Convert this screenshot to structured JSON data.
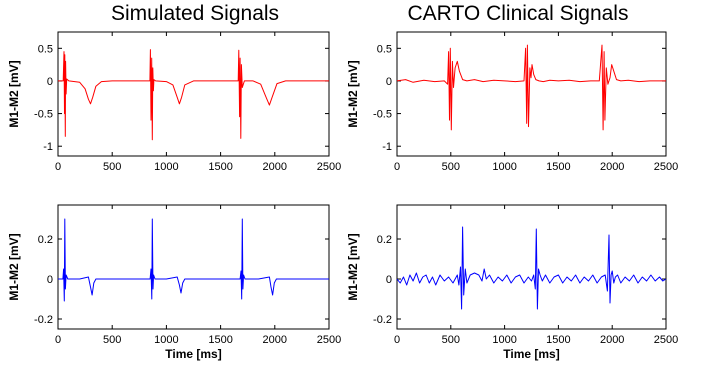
{
  "column_titles": [
    "Simulated Signals",
    "CARTO Clinical Signals"
  ],
  "colors": {
    "top_trace": "#ff0000",
    "bottom_trace": "#0000ff",
    "axes": "#000000"
  },
  "chart_data": [
    {
      "type": "line",
      "panel": "top-left",
      "ylabel": "M1-M2 [mV]",
      "xlabel": "",
      "xlim": [
        0,
        2500
      ],
      "ylim": [
        -1.15,
        0.75
      ],
      "xticks": [
        0,
        500,
        1000,
        1500,
        2000,
        2500
      ],
      "yticks": [
        -1,
        -0.5,
        0,
        0.5
      ],
      "ytick_labels": [
        "-1",
        "-0.5",
        "0",
        "0.5"
      ],
      "color": "#ff0000",
      "series": [
        {
          "x": [
            0,
            48,
            55,
            60,
            63,
            67,
            70,
            75,
            80,
            100,
            200,
            250,
            280,
            300,
            320,
            350,
            400,
            500,
            700,
            848,
            852,
            858,
            864,
            870,
            875,
            880,
            885,
            900,
            1000,
            1060,
            1100,
            1120,
            1140,
            1170,
            1250,
            1400,
            1662,
            1668,
            1675,
            1680,
            1686,
            1692,
            1700,
            1720,
            1800,
            1870,
            1920,
            1950,
            1975,
            2020,
            2100,
            2300,
            2500
          ],
          "y": [
            0,
            0,
            0.45,
            -0.5,
            0.4,
            -0.85,
            0.3,
            -0.2,
            0.03,
            0,
            -0.02,
            -0.12,
            -0.28,
            -0.35,
            -0.25,
            -0.08,
            -0.01,
            0,
            0,
            0,
            0.48,
            -0.6,
            0.35,
            -0.9,
            0.2,
            -0.15,
            0.02,
            0,
            -0.01,
            -0.06,
            -0.25,
            -0.35,
            -0.25,
            -0.06,
            0,
            0,
            0,
            0.47,
            -0.55,
            0.35,
            -0.88,
            0.25,
            -0.1,
            0,
            0,
            -0.05,
            -0.25,
            -0.37,
            -0.25,
            -0.04,
            0,
            0,
            0
          ]
        }
      ]
    },
    {
      "type": "line",
      "panel": "top-right",
      "ylabel": "M1-M2 [mV]",
      "xlabel": "",
      "xlim": [
        0,
        2500
      ],
      "ylim": [
        -1.15,
        0.75
      ],
      "xticks": [
        0,
        500,
        1000,
        1500,
        2000,
        2500
      ],
      "yticks": [
        -1,
        -0.5,
        0,
        0.5
      ],
      "ytick_labels": [
        "-1",
        "-0.5",
        "0",
        "0.5"
      ],
      "color": "#ff0000",
      "series": [
        {
          "x": [
            0,
            80,
            150,
            250,
            350,
            440,
            470,
            480,
            488,
            495,
            505,
            515,
            525,
            540,
            560,
            580,
            610,
            650,
            720,
            800,
            900,
            1000,
            1100,
            1180,
            1195,
            1205,
            1212,
            1222,
            1235,
            1245,
            1255,
            1270,
            1290,
            1320,
            1360,
            1420,
            1500,
            1600,
            1700,
            1800,
            1880,
            1905,
            1915,
            1925,
            1932,
            1945,
            1960,
            1980,
            1995,
            2015,
            2040,
            2080,
            2150,
            2250,
            2350,
            2500
          ],
          "y": [
            0,
            0.02,
            -0.02,
            0.01,
            -0.01,
            0,
            -0.05,
            0.45,
            -0.6,
            0.5,
            -0.75,
            0.3,
            -0.1,
            0.2,
            0.3,
            0.15,
            0.02,
            0,
            0.02,
            -0.01,
            0.01,
            0,
            -0.01,
            0,
            0.5,
            -0.65,
            0.55,
            -0.7,
            0.2,
            0.05,
            0.25,
            0.1,
            0.02,
            0,
            -0.01,
            0.01,
            0,
            0.01,
            -0.01,
            0,
            0,
            0.55,
            -0.75,
            0.45,
            -0.6,
            0.2,
            -0.05,
            0.05,
            0.25,
            0.15,
            0.02,
            0,
            0.01,
            -0.01,
            0,
            0
          ]
        }
      ]
    },
    {
      "type": "line",
      "panel": "bottom-left",
      "ylabel": "M1-M2 [mV]",
      "xlabel": "Time [ms]",
      "xlim": [
        0,
        2500
      ],
      "ylim": [
        -0.25,
        0.37
      ],
      "xticks": [
        0,
        500,
        1000,
        1500,
        2000,
        2500
      ],
      "yticks": [
        -0.2,
        0,
        0.2
      ],
      "ytick_labels": [
        "-0.2",
        "0",
        "0.2"
      ],
      "color": "#0000ff",
      "series": [
        {
          "x": [
            0,
            45,
            52,
            58,
            63,
            68,
            75,
            90,
            200,
            280,
            300,
            315,
            330,
            350,
            500,
            700,
            850,
            858,
            865,
            870,
            876,
            882,
            895,
            1000,
            1100,
            1120,
            1135,
            1150,
            1170,
            1300,
            1500,
            1680,
            1688,
            1695,
            1700,
            1706,
            1712,
            1725,
            1850,
            1950,
            1965,
            1980,
            1995,
            2015,
            2200,
            2500
          ],
          "y": [
            0,
            0,
            0.05,
            -0.11,
            0.3,
            -0.05,
            0.02,
            0,
            0,
            0.01,
            -0.04,
            -0.08,
            -0.02,
            0,
            0,
            0,
            0,
            0.05,
            -0.1,
            0.3,
            -0.05,
            0.02,
            0,
            0,
            0.01,
            -0.03,
            -0.07,
            -0.02,
            0,
            0,
            0,
            0,
            0.04,
            -0.1,
            0.3,
            -0.05,
            0.02,
            0,
            0,
            0.01,
            -0.04,
            -0.08,
            -0.02,
            0,
            0,
            0
          ]
        }
      ]
    },
    {
      "type": "line",
      "panel": "bottom-right",
      "ylabel": "M1-M2 [mV]",
      "xlabel": "Time [ms]",
      "xlim": [
        0,
        2500
      ],
      "ylim": [
        -0.25,
        0.37
      ],
      "xticks": [
        0,
        500,
        1000,
        1500,
        2000,
        2500
      ],
      "yticks": [
        -0.2,
        0,
        0.2
      ],
      "ytick_labels": [
        "-0.2",
        "0",
        "0.2"
      ],
      "color": "#0000ff",
      "series": [
        {
          "x": [
            0,
            30,
            60,
            90,
            120,
            150,
            180,
            210,
            240,
            270,
            300,
            330,
            360,
            400,
            440,
            480,
            520,
            560,
            575,
            590,
            600,
            610,
            620,
            635,
            650,
            680,
            720,
            760,
            790,
            810,
            830,
            860,
            900,
            940,
            980,
            1020,
            1060,
            1100,
            1140,
            1180,
            1220,
            1250,
            1270,
            1285,
            1295,
            1305,
            1315,
            1330,
            1350,
            1380,
            1420,
            1460,
            1500,
            1540,
            1580,
            1620,
            1660,
            1700,
            1740,
            1780,
            1820,
            1860,
            1900,
            1935,
            1955,
            1970,
            1980,
            1990,
            2000,
            2015,
            2030,
            2050,
            2080,
            2120,
            2160,
            2200,
            2240,
            2280,
            2320,
            2360,
            2400,
            2440,
            2470,
            2500
          ],
          "y": [
            0,
            -0.02,
            0.01,
            -0.03,
            0.02,
            -0.01,
            0.03,
            -0.02,
            0.01,
            0.02,
            -0.02,
            0.01,
            -0.03,
            0.02,
            -0.01,
            0.01,
            -0.02,
            0.02,
            -0.03,
            0.06,
            -0.15,
            0.26,
            -0.08,
            0.05,
            -0.02,
            0.02,
            0.03,
            0.02,
            -0.01,
            0.05,
            0.0,
            0.02,
            -0.02,
            0.01,
            -0.01,
            0.02,
            -0.02,
            0.01,
            0.02,
            -0.02,
            0.01,
            -0.01,
            0.02,
            -0.05,
            0.25,
            -0.15,
            0.05,
            0.02,
            -0.01,
            0.02,
            -0.02,
            0.01,
            0.02,
            -0.02,
            0.01,
            -0.01,
            0.02,
            -0.02,
            0.01,
            -0.01,
            0.02,
            -0.02,
            0.01,
            0.02,
            -0.06,
            0.22,
            -0.12,
            0.02,
            0.04,
            -0.02,
            0.01,
            0.02,
            -0.02,
            0.01,
            -0.01,
            0.02,
            -0.02,
            0.01,
            -0.01,
            0.02,
            -0.01,
            0.01,
            -0.01,
            0
          ]
        }
      ]
    }
  ]
}
